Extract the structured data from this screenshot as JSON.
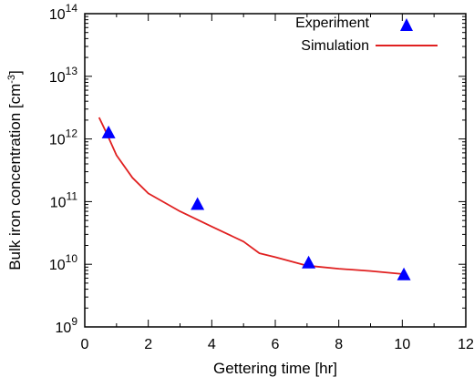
{
  "chart_data": {
    "type": "scatter",
    "xlabel": "Gettering time [hr]",
    "ylabel": "Bulk iron concentration [cm",
    "ylabel_sup": "-3",
    "ylabel_end": "]",
    "xlim": [
      0,
      12
    ],
    "ylim_log10": [
      9,
      14
    ],
    "y_scale": "log",
    "x_ticks": [
      "0",
      "2",
      "4",
      "6",
      "8",
      "10",
      "12"
    ],
    "y_ticks": [
      {
        "base": "10",
        "exp": "9"
      },
      {
        "base": "10",
        "exp": "10"
      },
      {
        "base": "10",
        "exp": "11"
      },
      {
        "base": "10",
        "exp": "12"
      },
      {
        "base": "10",
        "exp": "13"
      },
      {
        "base": "10",
        "exp": "14"
      }
    ],
    "grid": false,
    "legend_position": "top-right",
    "series": [
      {
        "name": "Experiment",
        "kind": "markers",
        "marker": "triangle",
        "color": "#0000ff",
        "x": [
          0.75,
          3.55,
          7.05,
          10.05
        ],
        "y": [
          1250000000000.0,
          90000000000.0,
          10500000000.0,
          6800000000.0
        ]
      },
      {
        "name": "Simulation",
        "kind": "line",
        "color": "#e02020",
        "x": [
          0.45,
          0.7,
          1.0,
          1.5,
          2.0,
          3.0,
          4.0,
          5.0,
          5.5,
          6.0,
          7.0,
          8.0,
          9.0,
          10.0
        ],
        "y": [
          2200000000000.0,
          1200000000000.0,
          550000000000.0,
          240000000000.0,
          135000000000.0,
          70000000000.0,
          40000000000.0,
          23000000000.0,
          15000000000.0,
          13000000000.0,
          9500000000.0,
          8500000000.0,
          7800000000.0,
          7000000000.0
        ]
      }
    ]
  }
}
